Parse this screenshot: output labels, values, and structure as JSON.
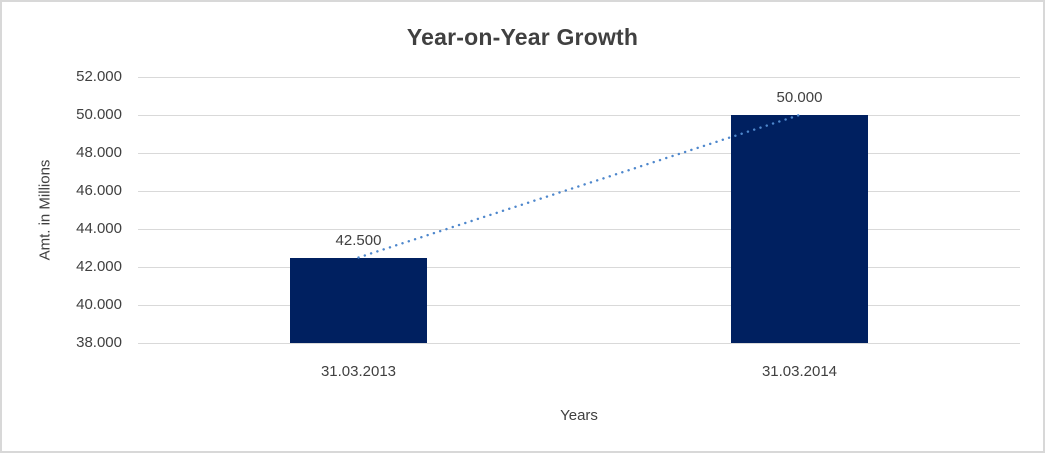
{
  "frame": {
    "background": "#ffffff",
    "border_color": "#d8d8d8"
  },
  "chart_data": {
    "type": "bar",
    "title": "Year-on-Year Growth",
    "xlabel": "Years",
    "ylabel": "Amt. in Millions",
    "categories": [
      "31.03.2013",
      "31.03.2014"
    ],
    "series": [
      {
        "values": [
          42500,
          50000
        ],
        "data_labels": [
          "42.500",
          "50.000"
        ],
        "color": "#002060"
      }
    ],
    "trendline": {
      "style": "dotted",
      "color": "#4e87cc",
      "connects": "bar-top-centers"
    },
    "y_axis": {
      "min": 38000,
      "max": 52000,
      "tick_step": 2000,
      "tick_labels_top_to_bottom": [
        "52.000",
        "50.000",
        "48.000",
        "46.000",
        "44.000",
        "42.000",
        "40.000",
        "38.000"
      ]
    },
    "x_axis": {
      "tick_labels": [
        "31.03.2013",
        "31.03.2014"
      ]
    },
    "grid": {
      "show": true,
      "color": "#d9d9d9",
      "orientation": "horizontal"
    },
    "legend": {
      "show": false
    },
    "text_color": "#404040"
  }
}
